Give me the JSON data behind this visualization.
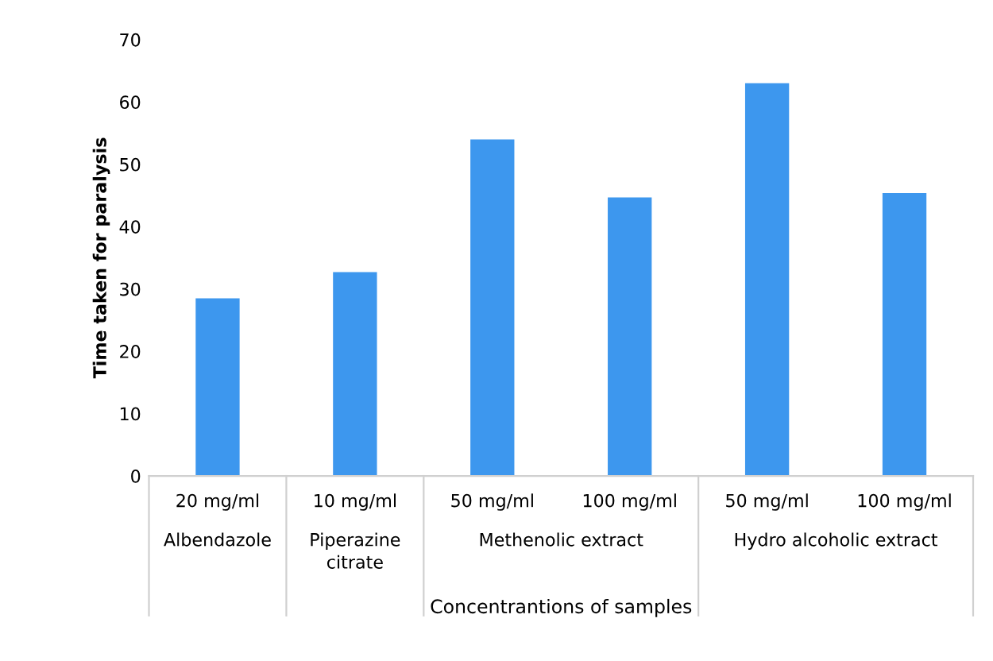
{
  "chart_data": {
    "type": "bar",
    "xlabel": "Concentrantions of samples",
    "ylabel": "Time taken for paralysis",
    "categories": [
      "20 mg/ml",
      "10 mg/ml",
      "50 mg/ml",
      "100 mg/ml",
      "50 mg/ml",
      "100 mg/ml"
    ],
    "values": [
      28.5,
      32.7,
      54.0,
      44.7,
      63.0,
      45.4
    ],
    "color": "#3d97ee",
    "ylim": [
      0,
      70
    ],
    "yticks": [
      0,
      10,
      20,
      30,
      40,
      50,
      60,
      70
    ],
    "grid": false,
    "annotations": [
      "Albendazole",
      "Piperazine\ncitrate",
      "Methenolic extract",
      "Hydro alcoholic extract"
    ]
  }
}
